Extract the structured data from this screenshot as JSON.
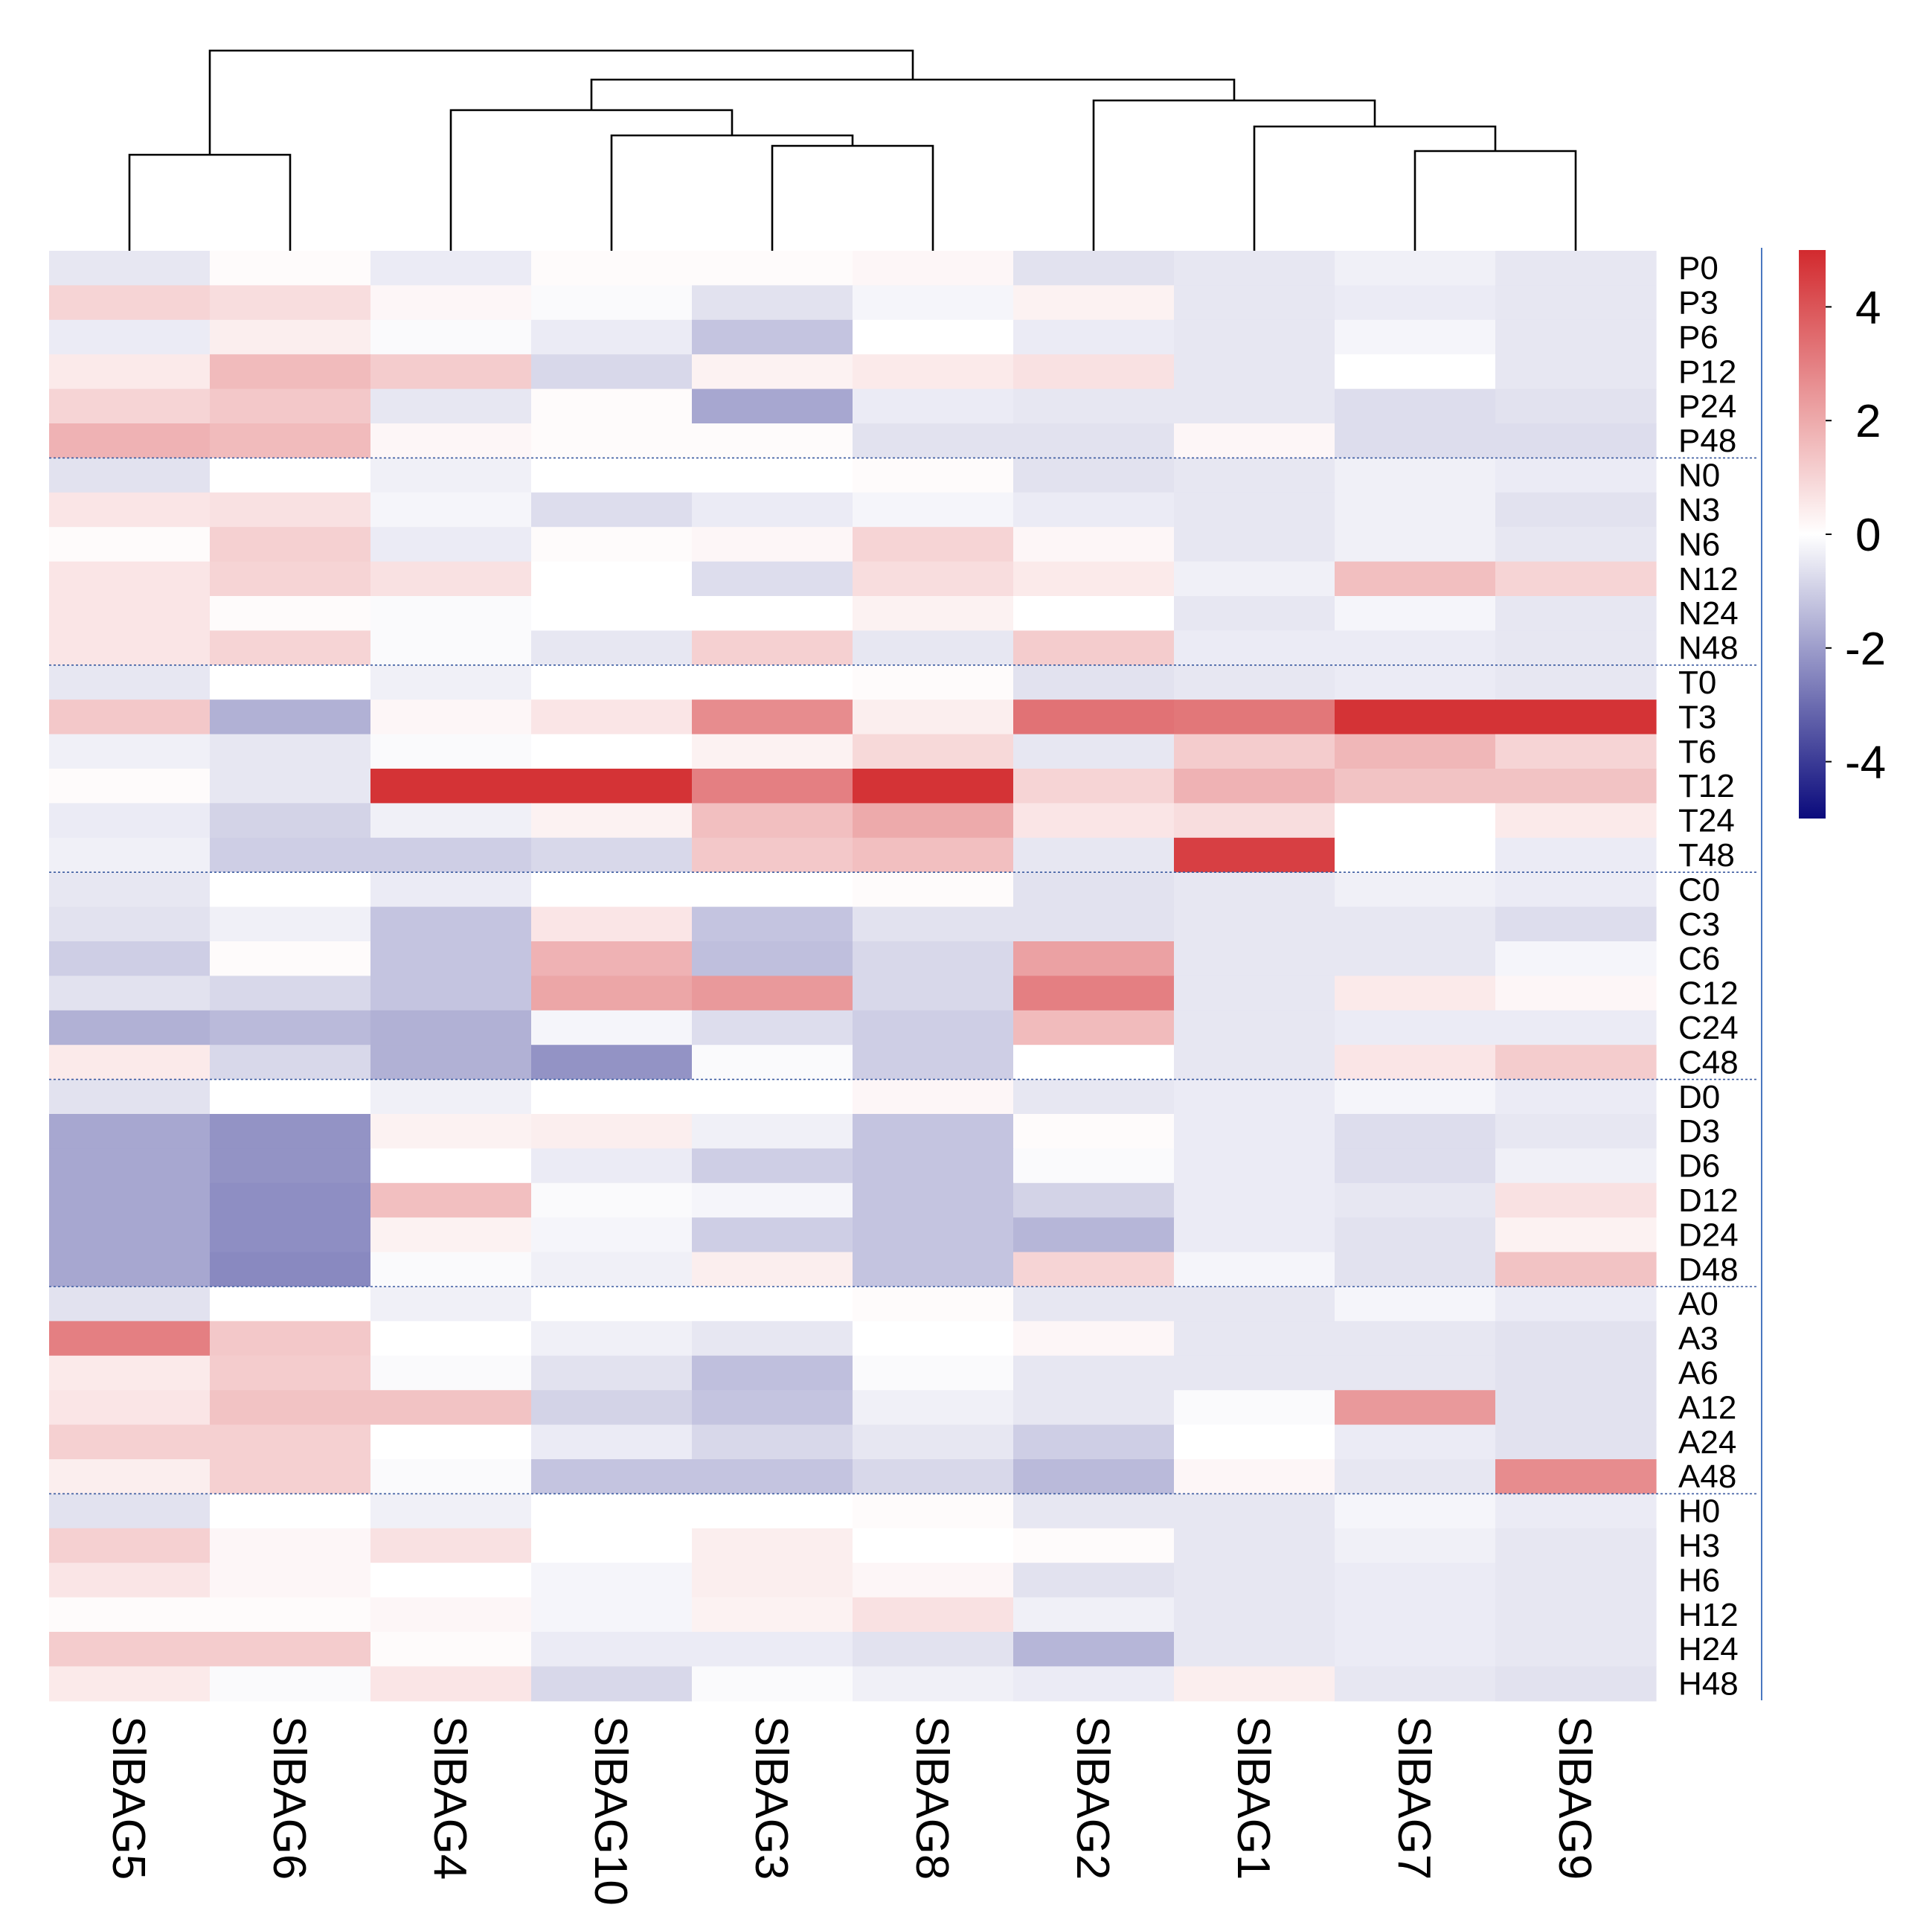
{
  "chart_data": {
    "type": "heatmap",
    "title": "",
    "columns": [
      "SlBAG5",
      "SlBAG6",
      "SlBAG4",
      "SlBAG10",
      "SlBAG3",
      "SlBAG8",
      "SlBAG2",
      "SlBAG1",
      "SlBAG7",
      "SlBAG9"
    ],
    "rows": [
      "P0",
      "P3",
      "P6",
      "P12",
      "P24",
      "P48",
      "N0",
      "N3",
      "N6",
      "N12",
      "N24",
      "N48",
      "T0",
      "T3",
      "T6",
      "T12",
      "T24",
      "T48",
      "C0",
      "C3",
      "C6",
      "C12",
      "C24",
      "C48",
      "D0",
      "D3",
      "D6",
      "D12",
      "D24",
      "D48",
      "A0",
      "A3",
      "A6",
      "A12",
      "A24",
      "A48",
      "H0",
      "H3",
      "H6",
      "H12",
      "H24",
      "H48"
    ],
    "row_groups": [
      {
        "name": "P",
        "rows": [
          "P0",
          "P3",
          "P6",
          "P12",
          "P24",
          "P48"
        ]
      },
      {
        "name": "N",
        "rows": [
          "N0",
          "N3",
          "N6",
          "N12",
          "N24",
          "N48"
        ]
      },
      {
        "name": "T",
        "rows": [
          "T0",
          "T3",
          "T6",
          "T12",
          "T24",
          "T48"
        ]
      },
      {
        "name": "C",
        "rows": [
          "C0",
          "C3",
          "C6",
          "C12",
          "C24",
          "C48"
        ]
      },
      {
        "name": "D",
        "rows": [
          "D0",
          "D3",
          "D6",
          "D12",
          "D24",
          "D48"
        ]
      },
      {
        "name": "A",
        "rows": [
          "A0",
          "A3",
          "A6",
          "A12",
          "A24",
          "A48"
        ]
      },
      {
        "name": "H",
        "rows": [
          "H0",
          "H3",
          "H6",
          "H12",
          "H24",
          "H48"
        ]
      }
    ],
    "values": [
      [
        -0.5,
        0.1,
        -0.4,
        0.1,
        0.1,
        0.2,
        -0.6,
        -0.5,
        -0.3,
        -0.5
      ],
      [
        1.0,
        0.8,
        0.2,
        -0.1,
        -0.6,
        -0.2,
        0.3,
        -0.5,
        -0.4,
        -0.5
      ],
      [
        -0.4,
        0.4,
        -0.1,
        -0.4,
        -1.2,
        0.0,
        -0.4,
        -0.5,
        -0.2,
        -0.5
      ],
      [
        0.5,
        1.6,
        1.2,
        -0.8,
        0.3,
        0.5,
        0.7,
        -0.5,
        0.0,
        -0.5
      ],
      [
        1.0,
        1.3,
        -0.5,
        0.1,
        -1.8,
        -0.4,
        -0.5,
        -0.5,
        -0.7,
        -0.6
      ],
      [
        1.8,
        1.6,
        0.2,
        0.1,
        0.1,
        -0.6,
        -0.6,
        0.2,
        -0.7,
        -0.7
      ],
      [
        -0.6,
        0.0,
        -0.3,
        0.0,
        0.0,
        0.1,
        -0.6,
        -0.5,
        -0.3,
        -0.4
      ],
      [
        0.6,
        0.7,
        -0.2,
        -0.7,
        -0.4,
        -0.2,
        -0.4,
        -0.5,
        -0.3,
        -0.6
      ],
      [
        0.1,
        1.1,
        -0.4,
        0.1,
        0.2,
        1.0,
        0.2,
        -0.5,
        -0.3,
        -0.5
      ],
      [
        0.6,
        1.0,
        0.7,
        0.0,
        -0.7,
        0.8,
        0.5,
        -0.3,
        1.5,
        1.0
      ],
      [
        0.6,
        0.1,
        -0.1,
        0.0,
        0.0,
        0.3,
        0.0,
        -0.5,
        -0.2,
        -0.5
      ],
      [
        0.6,
        1.0,
        -0.1,
        -0.5,
        1.1,
        -0.5,
        1.2,
        -0.4,
        -0.4,
        -0.5
      ],
      [
        -0.5,
        0.0,
        -0.3,
        0.0,
        0.0,
        0.1,
        -0.6,
        -0.5,
        -0.4,
        -0.5
      ],
      [
        1.3,
        -1.6,
        0.2,
        0.6,
        2.7,
        0.4,
        3.3,
        3.2,
        4.8,
        4.8
      ],
      [
        -0.3,
        -0.5,
        -0.1,
        0.0,
        0.3,
        0.9,
        -0.5,
        1.2,
        1.7,
        1.0
      ],
      [
        0.1,
        -0.5,
        4.8,
        4.8,
        3.0,
        4.8,
        1.0,
        1.8,
        1.4,
        1.4
      ],
      [
        -0.4,
        -0.9,
        -0.3,
        0.3,
        1.5,
        2.0,
        0.6,
        0.8,
        0.0,
        0.5
      ],
      [
        -0.3,
        -1.0,
        -1.0,
        -0.8,
        1.3,
        1.5,
        -0.5,
        4.5,
        0.0,
        -0.4
      ],
      [
        -0.5,
        0.0,
        -0.4,
        0.0,
        0.0,
        0.1,
        -0.6,
        -0.5,
        -0.3,
        -0.4
      ],
      [
        -0.6,
        -0.3,
        -1.2,
        0.6,
        -1.2,
        -0.6,
        -0.6,
        -0.5,
        -0.5,
        -0.7
      ],
      [
        -1.0,
        0.1,
        -1.2,
        1.8,
        -1.3,
        -0.8,
        2.2,
        -0.5,
        -0.5,
        -0.2
      ],
      [
        -0.6,
        -0.8,
        -1.2,
        2.1,
        2.4,
        -0.8,
        3.0,
        -0.5,
        0.5,
        0.2
      ],
      [
        -1.6,
        -1.4,
        -1.6,
        -0.2,
        -0.7,
        -1.0,
        1.6,
        -0.5,
        -0.4,
        -0.4
      ],
      [
        0.5,
        -0.8,
        -1.6,
        -2.2,
        -0.1,
        -1.0,
        0.0,
        -0.5,
        0.6,
        1.2
      ],
      [
        -0.6,
        0.0,
        -0.3,
        0.0,
        0.0,
        0.2,
        -0.5,
        -0.4,
        -0.2,
        -0.4
      ],
      [
        -1.8,
        -2.2,
        0.3,
        0.4,
        -0.3,
        -1.2,
        0.1,
        -0.4,
        -0.7,
        -0.5
      ],
      [
        -1.8,
        -2.2,
        0.0,
        -0.4,
        -1.0,
        -1.2,
        -0.1,
        -0.4,
        -0.7,
        -0.3
      ],
      [
        -1.8,
        -2.3,
        1.5,
        -0.1,
        -0.2,
        -1.2,
        -0.9,
        -0.4,
        -0.5,
        0.7
      ],
      [
        -1.8,
        -2.3,
        0.3,
        -0.2,
        -1.0,
        -1.2,
        -1.5,
        -0.4,
        -0.6,
        0.3
      ],
      [
        -1.8,
        -2.4,
        -0.1,
        -0.3,
        0.4,
        -1.2,
        1.0,
        -0.2,
        -0.6,
        1.4
      ],
      [
        -0.6,
        0.0,
        -0.3,
        0.0,
        0.0,
        0.1,
        -0.5,
        -0.5,
        -0.2,
        -0.4
      ],
      [
        3.0,
        1.3,
        0.0,
        -0.3,
        -0.5,
        0.0,
        0.2,
        -0.5,
        -0.5,
        -0.6
      ],
      [
        0.5,
        1.2,
        -0.1,
        -0.6,
        -1.3,
        -0.1,
        -0.5,
        -0.5,
        -0.5,
        -0.6
      ],
      [
        0.6,
        1.4,
        1.4,
        -0.9,
        -1.2,
        -0.3,
        -0.5,
        -0.1,
        2.4,
        -0.6
      ],
      [
        1.1,
        1.1,
        0.0,
        -0.4,
        -0.8,
        -0.5,
        -1.0,
        0.0,
        -0.4,
        -0.6
      ],
      [
        0.4,
        1.1,
        -0.1,
        -1.2,
        -1.2,
        -0.8,
        -1.4,
        0.2,
        -0.5,
        2.7
      ],
      [
        -0.6,
        0.0,
        -0.3,
        0.0,
        0.0,
        0.1,
        -0.5,
        -0.5,
        -0.2,
        -0.4
      ],
      [
        1.1,
        0.2,
        0.7,
        0.0,
        0.4,
        0.0,
        0.1,
        -0.5,
        -0.3,
        -0.5
      ],
      [
        0.6,
        0.2,
        0.0,
        -0.2,
        0.4,
        0.2,
        -0.6,
        -0.5,
        -0.4,
        -0.5
      ],
      [
        0.1,
        0.1,
        0.2,
        -0.2,
        0.3,
        0.7,
        -0.3,
        -0.5,
        -0.4,
        -0.5
      ],
      [
        1.2,
        1.2,
        0.1,
        -0.4,
        -0.4,
        -0.6,
        -1.5,
        -0.5,
        -0.4,
        -0.5
      ],
      [
        0.5,
        -0.1,
        0.6,
        -0.8,
        -0.1,
        -0.3,
        -0.4,
        0.4,
        -0.5,
        -0.6
      ]
    ],
    "colorbar": {
      "min": -5,
      "max": 5,
      "ticks": [
        4,
        2,
        0,
        -2,
        -4
      ],
      "colors": {
        "low": "#0a0a7c",
        "mid": "#ffffff",
        "high": "#d22a2e"
      }
    },
    "column_dendrogram": true,
    "row_group_separators": true,
    "legend_placement": "right"
  }
}
